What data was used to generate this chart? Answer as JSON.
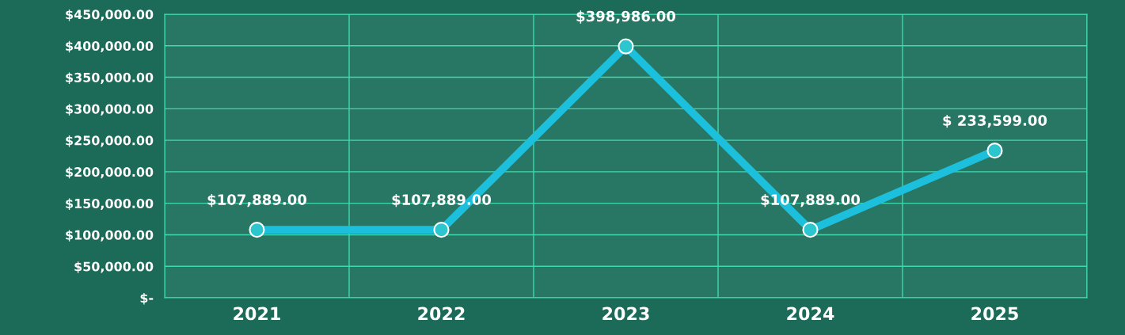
{
  "chart_data": {
    "type": "line",
    "categories": [
      "2021",
      "2022",
      "2023",
      "2024",
      "2025"
    ],
    "series": [
      {
        "color": "#1cbfdc",
        "values": [
          107889,
          107889,
          398986,
          107889,
          233599
        ],
        "value_labels": [
          "$107,889.00",
          "$107,889.00",
          "$398,986.00",
          "$107,889.00",
          "$ 233,599.00"
        ]
      }
    ],
    "ylim": [
      0,
      450000
    ],
    "yticks": [
      {
        "value": 0,
        "label": "$-"
      },
      {
        "value": 50000,
        "label": "$50,000.00"
      },
      {
        "value": 100000,
        "label": "$100,000.00"
      },
      {
        "value": 150000,
        "label": "$150,000.00"
      },
      {
        "value": 200000,
        "label": "$200,000.00"
      },
      {
        "value": 250000,
        "label": "$250,000.00"
      },
      {
        "value": 300000,
        "label": "$300,000.00"
      },
      {
        "value": 350000,
        "label": "$350,000.00"
      },
      {
        "value": 400000,
        "label": "$400,000.00"
      },
      {
        "value": 450000,
        "label": "$450,000.00"
      }
    ],
    "grid": true,
    "marker": "circle",
    "line_style": "solid"
  }
}
